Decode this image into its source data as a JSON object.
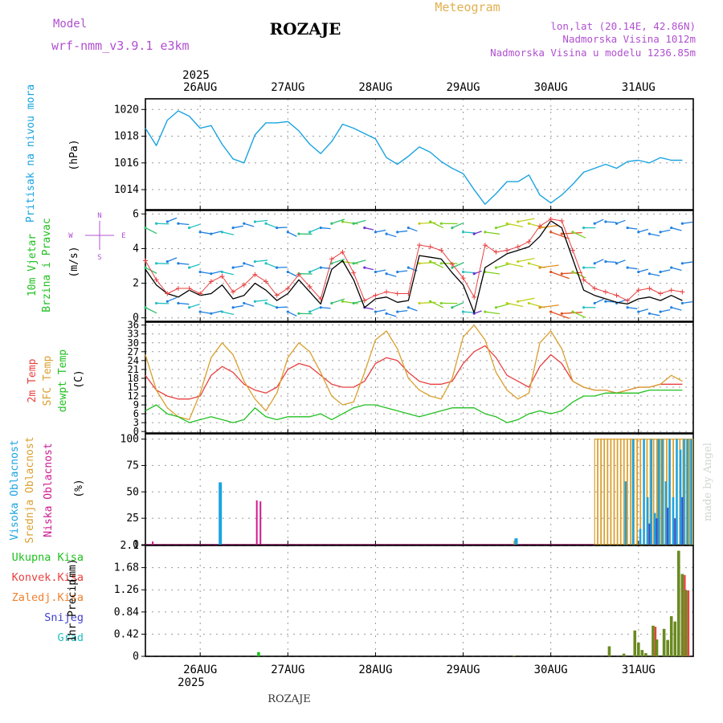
{
  "header": {
    "model_label": "Model",
    "model_name": "wrf-nmm_v3.9.1 e3km",
    "station": "ROZAJE",
    "product": "Meteogram",
    "location_line": "lon,lat (20.14E, 42.86N)",
    "altitude_line": "Nadmorska Visina 1012m",
    "model_altitude_line": "Nadmorska Visina u modelu 1236.85m",
    "footer_station": "ROZAJE",
    "watermark": "made by Angel"
  },
  "colors": {
    "pressure": "#1aa3e0",
    "wind_speed": "#000000",
    "wind_gust": "#e84040",
    "temp_2m": "#e84040",
    "temp_sfc": "#d9a030",
    "temp_dew": "#20c020",
    "cloud_high": "#1aa3e0",
    "cloud_mid": "#d9a030",
    "cloud_low": "#d01890",
    "precip_total": "#6a8a20",
    "precip_conv": "#e84040",
    "label_magenta": "#b050d0",
    "label_orange": "#e0b050"
  },
  "time_axis": {
    "top_year": "2025",
    "bottom_year": "2025",
    "day_labels": [
      "26AUG",
      "27AUG",
      "28AUG",
      "29AUG",
      "30AUG",
      "31AUG"
    ]
  },
  "compass": {
    "north": "N",
    "south": "S",
    "east": "E",
    "west": "W"
  },
  "chart_data": [
    {
      "type": "line",
      "name": "pressure",
      "ylabel": "Pritisak na nivou mora",
      "unit": "(hPa)",
      "ylim": [
        1012.5,
        1020.8
      ],
      "yticks": [
        1014,
        1016,
        1018,
        1020
      ],
      "x_hours": [
        0,
        3,
        6,
        9,
        12,
        15,
        18,
        21,
        24,
        27,
        30,
        33,
        36,
        39,
        42,
        45,
        48,
        51,
        54,
        57,
        60,
        63,
        66,
        69,
        72,
        75,
        78,
        81,
        84,
        87,
        90,
        93,
        96,
        99,
        102,
        105,
        108,
        111,
        114,
        117,
        120,
        123,
        126,
        129,
        132,
        135,
        138,
        141,
        144,
        147
      ],
      "values": [
        1018.6,
        1017.3,
        1019.2,
        1019.9,
        1019.5,
        1018.6,
        1018.8,
        1017.4,
        1016.3,
        1016.0,
        1018.1,
        1019.0,
        1019.0,
        1019.1,
        1018.4,
        1017.4,
        1016.7,
        1017.6,
        1018.9,
        1018.6,
        1018.2,
        1017.8,
        1016.4,
        1015.9,
        1016.5,
        1017.2,
        1016.8,
        1016.1,
        1015.6,
        1015.2,
        1014.0,
        1012.9,
        1013.7,
        1014.6,
        1014.6,
        1015.1,
        1013.6,
        1013.0,
        1013.6,
        1014.4,
        1015.3,
        1015.6,
        1015.9,
        1015.6,
        1016.1,
        1016.2,
        1016.0,
        1016.4,
        1016.2,
        1016.2
      ]
    },
    {
      "type": "line",
      "name": "wind",
      "ylabel": "10m Vjetar Brzina i Pravac",
      "unit": "(m/s)",
      "ylim": [
        -0.2,
        6.2
      ],
      "yticks": [
        0,
        2,
        4,
        6
      ],
      "x_hours": [
        0,
        3,
        6,
        9,
        12,
        15,
        18,
        21,
        24,
        27,
        30,
        33,
        36,
        39,
        42,
        45,
        48,
        51,
        54,
        57,
        60,
        63,
        66,
        69,
        72,
        75,
        78,
        81,
        84,
        87,
        90,
        93,
        96,
        99,
        102,
        105,
        108,
        111,
        114,
        117,
        120,
        123,
        126,
        129,
        132,
        135,
        138,
        141,
        144,
        147
      ],
      "series": [
        {
          "name": "speed",
          "values": [
            2.8,
            1.9,
            1.4,
            1.2,
            1.6,
            1.3,
            1.4,
            1.9,
            1.1,
            1.3,
            2.0,
            1.6,
            1.0,
            1.4,
            2.2,
            1.5,
            0.8,
            2.8,
            3.3,
            2.2,
            0.6,
            1.1,
            1.2,
            0.9,
            1.0,
            3.6,
            3.5,
            3.4,
            2.6,
            1.9,
            0.3,
            2.9,
            3.3,
            3.7,
            3.9,
            4.1,
            4.7,
            5.6,
            5.2,
            3.4,
            1.6,
            1.3,
            1.1,
            0.9,
            0.8,
            1.1,
            1.2,
            1.0,
            1.3,
            1.0
          ]
        },
        {
          "name": "gust",
          "values": [
            3.3,
            2.2,
            1.4,
            1.7,
            1.7,
            1.4,
            2.1,
            2.4,
            1.5,
            1.9,
            2.5,
            2.1,
            1.3,
            1.7,
            2.5,
            1.8,
            1.1,
            3.4,
            3.8,
            2.6,
            1.0,
            1.3,
            1.5,
            1.4,
            1.4,
            4.2,
            4.1,
            3.9,
            3.1,
            2.3,
            1.2,
            4.2,
            3.8,
            3.9,
            4.1,
            4.4,
            5.3,
            5.7,
            5.6,
            3.9,
            2.2,
            1.7,
            1.5,
            1.3,
            1.0,
            1.6,
            1.7,
            1.4,
            1.6,
            1.5
          ]
        }
      ]
    },
    {
      "type": "line",
      "name": "temperature",
      "ylabel": "2m Temp / SFC Temp / dewpt Temp",
      "unit": "(C)",
      "ylim": [
        -0.5,
        37
      ],
      "yticks": [
        0,
        3,
        6,
        9,
        12,
        15,
        18,
        21,
        24,
        27,
        30,
        33,
        36
      ],
      "x_hours": [
        0,
        3,
        6,
        9,
        12,
        15,
        18,
        21,
        24,
        27,
        30,
        33,
        36,
        39,
        42,
        45,
        48,
        51,
        54,
        57,
        60,
        63,
        66,
        69,
        72,
        75,
        78,
        81,
        84,
        87,
        90,
        93,
        96,
        99,
        102,
        105,
        108,
        111,
        114,
        117,
        120,
        123,
        126,
        129,
        132,
        135,
        138,
        141,
        144,
        147
      ],
      "series": [
        {
          "name": "2m",
          "values": [
            19,
            14,
            12,
            11,
            11,
            12,
            19,
            22,
            20,
            16,
            14,
            13,
            15,
            21,
            23,
            22,
            19,
            16,
            15,
            15,
            17,
            23,
            25,
            24,
            20,
            17,
            16,
            16,
            17,
            23,
            27,
            29,
            25,
            19,
            17,
            15,
            22,
            26,
            23,
            17,
            15,
            14,
            14,
            13,
            14,
            15,
            15,
            16,
            16,
            16
          ]
        },
        {
          "name": "sfc",
          "values": [
            26,
            14,
            8,
            5,
            4,
            13,
            25,
            30,
            26,
            17,
            11,
            7,
            13,
            25,
            30,
            27,
            20,
            12,
            9,
            10,
            20,
            31,
            34,
            28,
            18,
            14,
            12,
            11,
            18,
            32,
            36,
            31,
            20,
            14,
            11,
            13,
            30,
            34,
            28,
            17,
            15,
            14,
            14,
            13,
            14,
            15,
            15,
            16,
            19,
            17
          ]
        },
        {
          "name": "dewpt",
          "values": [
            7,
            9,
            6,
            5,
            3,
            4,
            5,
            4,
            3,
            4,
            8,
            5,
            4,
            5,
            5,
            5,
            6,
            4,
            6,
            8,
            9,
            9,
            8,
            7,
            6,
            5,
            6,
            7,
            8,
            8,
            8,
            6,
            5,
            3,
            4,
            6,
            7,
            6,
            7,
            10,
            12,
            12,
            13,
            13,
            13,
            13,
            14,
            14,
            14,
            14
          ]
        }
      ]
    },
    {
      "type": "bar",
      "name": "clouds",
      "ylabel": "Visoka / Srednja / Niska Oblacnost",
      "unit": "(%)",
      "ylim": [
        0,
        105
      ],
      "yticks": [
        0,
        25,
        50,
        75,
        100
      ],
      "bars": [
        {
          "series": "high",
          "hour": 20.5,
          "value": 59
        },
        {
          "series": "low",
          "hour": 30.5,
          "value": 42
        },
        {
          "series": "low",
          "hour": 31.5,
          "value": 41
        },
        {
          "series": "mid",
          "hour": 101,
          "value": 4
        },
        {
          "series": "high",
          "hour": 101.5,
          "value": 6
        },
        {
          "series": "low",
          "hour": 2,
          "value": 3
        }
      ],
      "dense_start_hour": 123,
      "dense_end_hour": 150,
      "dense_mid_value": 100,
      "dense_high_values": [
        0,
        60,
        0,
        100,
        0,
        15,
        100,
        45,
        100,
        30,
        100,
        100,
        60,
        100,
        45,
        100,
        90,
        100,
        100,
        100
      ],
      "dense_low_values": [
        0,
        0,
        0,
        0,
        0,
        0,
        0,
        20,
        0,
        25,
        0,
        0,
        35,
        0,
        25,
        0,
        45,
        0,
        0,
        0
      ]
    },
    {
      "type": "bar",
      "name": "precip",
      "ylabel": "1hr Precip",
      "unit": "(mm)",
      "ylim": [
        0,
        2.1
      ],
      "yticks": [
        0,
        0.42,
        0.84,
        1.26,
        1.68,
        2.1
      ],
      "legend": [
        "Ukupna Kisa",
        "Konvek.Kisa",
        "Zaledj.Kisa",
        "Snijeg",
        "Grad"
      ],
      "bars": [
        {
          "hour": 31,
          "total": 0.08,
          "conv": 0.0
        },
        {
          "hour": 101,
          "total": 0.01,
          "conv": 0.0
        },
        {
          "hour": 127,
          "total": 0.19,
          "conv": 0.0
        },
        {
          "hour": 131,
          "total": 0.05,
          "conv": 0.0
        },
        {
          "hour": 134,
          "total": 0.49,
          "conv": 0.0
        },
        {
          "hour": 135,
          "total": 0.26,
          "conv": 0.0
        },
        {
          "hour": 136,
          "total": 0.12,
          "conv": 0.0
        },
        {
          "hour": 137,
          "total": 0.06,
          "conv": 0.0
        },
        {
          "hour": 139,
          "total": 0.58,
          "conv": 0.56
        },
        {
          "hour": 140,
          "total": 0.32,
          "conv": 0.0
        },
        {
          "hour": 142,
          "total": 0.52,
          "conv": 0.0
        },
        {
          "hour": 143,
          "total": 0.31,
          "conv": 0.0
        },
        {
          "hour": 144,
          "total": 0.76,
          "conv": 0.0
        },
        {
          "hour": 145,
          "total": 0.66,
          "conv": 0.0
        },
        {
          "hour": 146,
          "total": 2.0,
          "conv": 0.0
        },
        {
          "hour": 147,
          "total": 1.56,
          "conv": 1.54
        },
        {
          "hour": 148,
          "total": 1.25,
          "conv": 1.25
        }
      ]
    }
  ]
}
